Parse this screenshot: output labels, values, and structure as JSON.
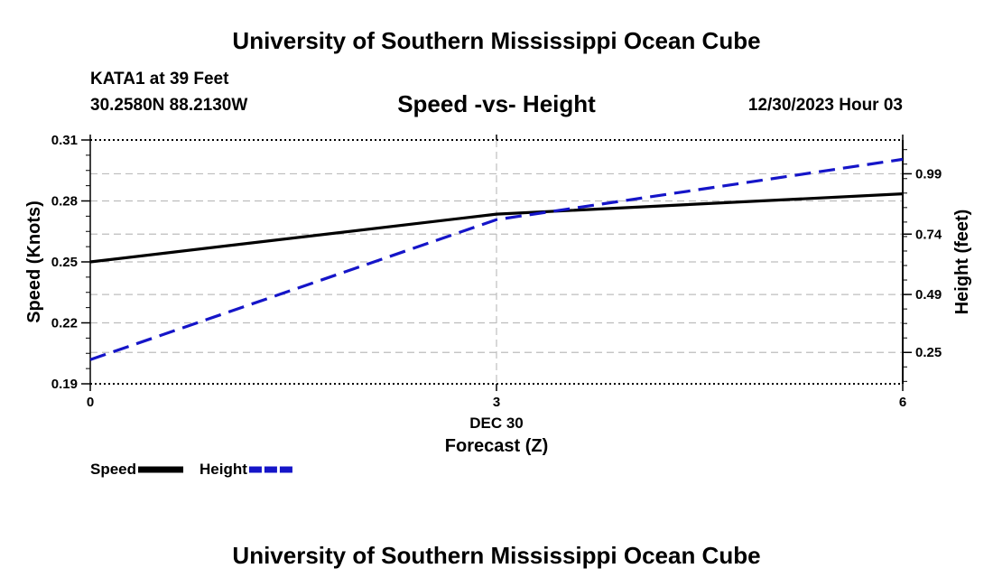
{
  "header": {
    "title_top": "University of Southern Mississippi Ocean Cube",
    "station": "KATA1 at 39 Feet",
    "coords": "30.2580N  88.2130W",
    "date_label": "12/30/2023 Hour 03",
    "title_bottom": "University of Southern Mississippi Ocean Cube"
  },
  "chart_data": {
    "type": "line",
    "title": "Speed -vs- Height",
    "x": [
      0,
      3,
      6
    ],
    "x_tick_labels": [
      "0",
      "3",
      "6"
    ],
    "x_sublabel": "DEC 30",
    "xlabel": "Forecast (Z)",
    "xlim": [
      0,
      6
    ],
    "ylabel": "Speed (Knots)",
    "ylim": [
      0.19,
      0.31
    ],
    "y_ticks": [
      0.19,
      0.22,
      0.25,
      0.28,
      0.31
    ],
    "y_tick_labels": [
      "0.19",
      "0.22",
      "0.25",
      "0.28",
      "0.31"
    ],
    "y2label": "Height (feet)",
    "y2lim": [
      0.12,
      1.13
    ],
    "y2_ticks": [
      0.25,
      0.49,
      0.74,
      0.99
    ],
    "y2_tick_labels": [
      "0.25",
      "0.49",
      "0.74",
      "0.99"
    ],
    "grid": true,
    "legend_position": "bottom-left",
    "series": [
      {
        "name": "Speed",
        "axis": "left",
        "color": "#000000",
        "style": "solid",
        "values": [
          0.25,
          0.2735,
          0.2835
        ]
      },
      {
        "name": "Height",
        "axis": "right",
        "color": "#1515c8",
        "style": "dashed",
        "values": [
          0.22,
          0.8,
          1.05
        ]
      }
    ]
  }
}
